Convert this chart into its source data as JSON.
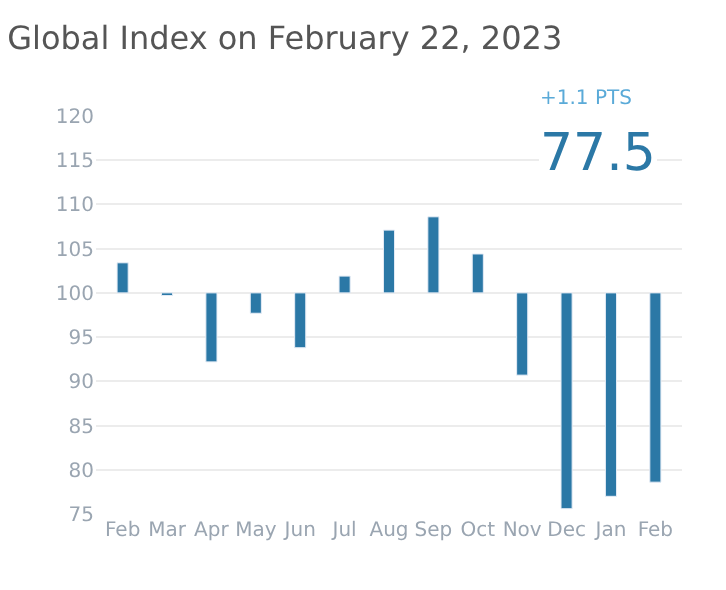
{
  "chart_data": {
    "type": "bar",
    "title": "Global Index on February 22, 2023",
    "categories": [
      "Feb",
      "Mar",
      "Apr",
      "May",
      "Jun",
      "Jul",
      "Aug",
      "Sep",
      "Oct",
      "Nov",
      "Dec",
      "Jan",
      "Feb"
    ],
    "base": [
      100,
      100,
      100,
      100,
      100,
      100,
      100,
      100,
      100,
      100,
      100,
      100,
      100
    ],
    "values": [
      3.4,
      -0.3,
      -7.8,
      -2.3,
      -6.2,
      1.9,
      7.1,
      8.6,
      4.4,
      -9.3,
      -24.4,
      -23.0,
      -21.4
    ],
    "color": "#2b78a6",
    "ylim": [
      75,
      120
    ],
    "yticks": [
      75,
      80,
      85,
      90,
      95,
      100,
      105,
      110,
      115,
      120
    ],
    "grid": "y",
    "annotations": [
      "+1.1 PTS",
      "77.5"
    ]
  }
}
